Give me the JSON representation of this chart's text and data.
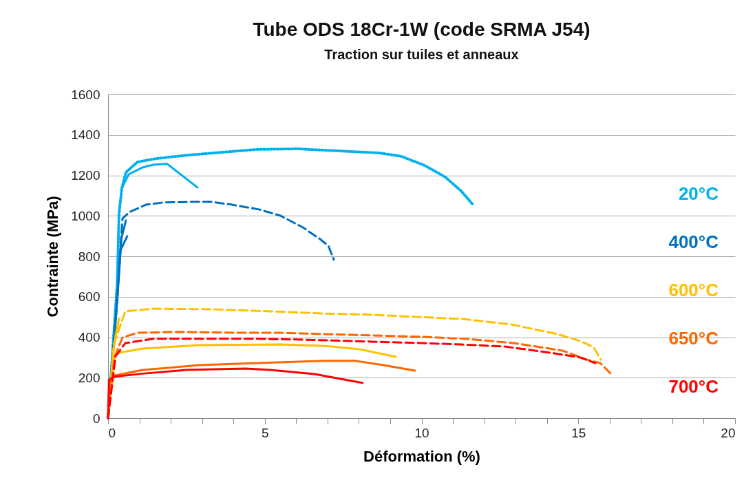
{
  "chart_data": {
    "type": "line",
    "title": "Tube ODS 18Cr-1W (code SRMA J54)",
    "subtitle": "Traction sur tuiles et anneaux",
    "xlabel": "Déformation (%)",
    "ylabel": "Contrainte (MPa)",
    "xlim": [
      0,
      20
    ],
    "ylim": [
      0,
      1600
    ],
    "xticks": [
      0,
      {
        "value": 1,
        "label": null
      },
      {
        "value": 2,
        "label": null
      },
      {
        "value": 3,
        "label": null
      },
      {
        "value": 4,
        "label": null
      },
      5,
      {
        "value": 6,
        "label": null
      },
      {
        "value": 7,
        "label": null
      },
      {
        "value": 8,
        "label": null
      },
      {
        "value": 9,
        "label": null
      },
      10,
      {
        "value": 11,
        "label": null
      },
      {
        "value": 12,
        "label": null
      },
      {
        "value": 13,
        "label": null
      },
      {
        "value": 14,
        "label": null
      },
      15,
      {
        "value": 16,
        "label": null
      },
      {
        "value": 17,
        "label": null
      },
      {
        "value": 18,
        "label": null
      },
      {
        "value": 19,
        "label": null
      },
      20
    ],
    "yticks": [
      0,
      200,
      400,
      600,
      800,
      1000,
      1200,
      1400,
      1600
    ],
    "grid": "y",
    "legend": "right",
    "series": [
      {
        "name": "20°C",
        "color": "#00b0f0",
        "line_style": "dotted",
        "x": [
          0,
          0.29,
          0.35,
          0.44,
          0.57,
          0.94,
          1.54,
          2.55,
          4.74,
          6.06,
          6.43,
          8.63,
          9.35,
          10.1,
          10.76,
          11.26,
          11.64
        ],
        "values": [
          0,
          660,
          1011,
          1137,
          1215,
          1266,
          1283,
          1300,
          1328,
          1331,
          1328,
          1311,
          1294,
          1249,
          1191,
          1123,
          1055
        ]
      },
      {
        "color": "#00b0f0",
        "line_style": "solid",
        "x": [
          0,
          0.29,
          0.35,
          0.44,
          0.66,
          1.1,
          1.45,
          1.89,
          2.85
        ],
        "values": [
          0,
          660,
          1011,
          1137,
          1205,
          1239,
          1253,
          1256,
          1140
        ]
      },
      {
        "name": "400°C",
        "color": "#0070c0",
        "line_style": "dashed",
        "x": [
          0,
          0.3,
          0.46,
          0.68,
          1.21,
          1.76,
          2.77,
          3.29,
          3.95,
          4.83,
          5.49,
          6.21,
          6.76,
          7.03,
          7.2
        ],
        "values": [
          0,
          600,
          987,
          1018,
          1055,
          1066,
          1069,
          1069,
          1055,
          1031,
          1001,
          943,
          885,
          851,
          783
        ]
      },
      {
        "color": "#0070c0",
        "line_style": "solid",
        "x": [
          0,
          0.25,
          0.42,
          0.57
        ],
        "values": [
          0,
          500,
          885,
          977
        ]
      },
      {
        "color": "#0070c0",
        "line_style": "solid",
        "x": [
          0,
          0.3,
          0.4,
          0.61
        ],
        "values": [
          0,
          600,
          830,
          899
        ]
      },
      {
        "name": "600°C",
        "color": "#ffc000",
        "line_style": "dashed",
        "x": [
          0,
          0.18,
          0.55,
          1.45,
          3.29,
          5.18,
          6.94,
          8.41,
          9.88,
          11.33,
          12.87,
          14.34,
          14.93,
          15.26,
          15.5,
          15.72
        ],
        "values": [
          0,
          364,
          528,
          541,
          538,
          528,
          517,
          511,
          500,
          490,
          463,
          415,
          388,
          368,
          347,
          289
        ]
      },
      {
        "color": "#ffc000",
        "line_style": "solid",
        "x": [
          0,
          0.22,
          0.35,
          1.1,
          2.92,
          5.49,
          6.94,
          8.04,
          9.18
        ],
        "values": [
          0,
          306,
          323,
          344,
          361,
          364,
          357,
          340,
          303
        ]
      },
      {
        "color": "#ffc000",
        "line_style": "solid",
        "x": [
          0,
          0.15,
          0.24,
          0.35
        ],
        "values": [
          0,
          300,
          408,
          492
        ]
      },
      {
        "name": "650°C",
        "color": "#ff6600",
        "line_style": "dashed",
        "x": [
          0,
          0.2,
          0.46,
          0.94,
          2.2,
          4.02,
          5.49,
          6.94,
          8.41,
          10.0,
          11.42,
          12.95,
          14.49,
          15.28,
          15.7,
          16.05
        ],
        "values": [
          0,
          300,
          398,
          422,
          426,
          422,
          422,
          415,
          409,
          402,
          392,
          371,
          334,
          289,
          272,
          218
        ]
      },
      {
        "color": "#ff6600",
        "line_style": "solid",
        "x": [
          0,
          0.07,
          0.22,
          1.1,
          2.92,
          4.74,
          6.94,
          7.9,
          8.78,
          9.79
        ],
        "values": [
          0,
          184,
          211,
          238,
          262,
          272,
          283,
          283,
          262,
          235
        ]
      },
      {
        "name": "700°C",
        "color": "#ff0000",
        "line_style": "dashed",
        "x": [
          0,
          0.24,
          0.55,
          1.45,
          3.29,
          4.74,
          6.21,
          8.41,
          10.0,
          11.26,
          12.65,
          14.12,
          15.06,
          15.54
        ],
        "values": [
          0,
          306,
          371,
          392,
          392,
          392,
          388,
          378,
          371,
          364,
          354,
          323,
          300,
          272
        ]
      },
      {
        "color": "#ff0000",
        "line_style": "solid",
        "x": [
          0,
          0.03,
          0.2,
          1.1,
          2.48,
          4.39,
          5.18,
          6.59,
          8.12
        ],
        "values": [
          0,
          190,
          205,
          220,
          238,
          245,
          238,
          218,
          174
        ]
      }
    ]
  }
}
